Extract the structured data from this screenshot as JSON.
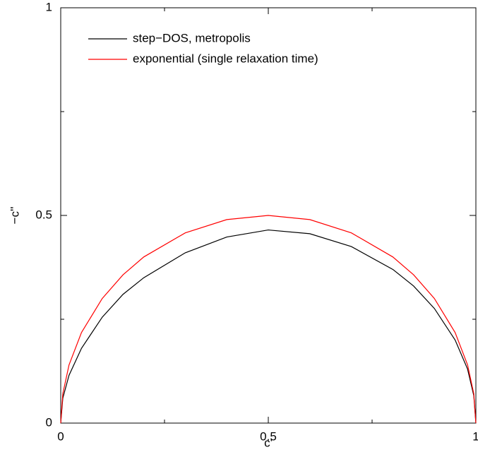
{
  "chart_data": {
    "type": "line",
    "xlabel": "c'",
    "ylabel": "−c''",
    "x": [
      0,
      0.005,
      0.02,
      0.05,
      0.1,
      0.15,
      0.2,
      0.3,
      0.4,
      0.5,
      0.6,
      0.7,
      0.8,
      0.85,
      0.9,
      0.95,
      0.98,
      0.995,
      1
    ],
    "series": [
      {
        "name": "step−DOS, metropolis",
        "color": "#000000",
        "values": [
          0,
          0.06,
          0.115,
          0.18,
          0.255,
          0.31,
          0.35,
          0.41,
          0.448,
          0.465,
          0.456,
          0.425,
          0.37,
          0.33,
          0.276,
          0.2,
          0.13,
          0.066,
          0
        ]
      },
      {
        "name": "exponential (single relaxation time)",
        "color": "#ff0000",
        "values": [
          0,
          0.0705,
          0.14,
          0.218,
          0.3,
          0.357,
          0.4,
          0.458,
          0.49,
          0.5,
          0.49,
          0.458,
          0.4,
          0.357,
          0.3,
          0.218,
          0.14,
          0.0705,
          0
        ]
      }
    ],
    "xlim": [
      0,
      1
    ],
    "ylim": [
      0,
      1
    ],
    "xticks": [
      0,
      0.5,
      1
    ],
    "yticks": [
      0,
      0.5,
      1
    ],
    "xminor_ticks": [
      0.25,
      0.75
    ],
    "yminor_ticks": [
      0.25,
      0.75
    ],
    "legend": "upper left"
  }
}
